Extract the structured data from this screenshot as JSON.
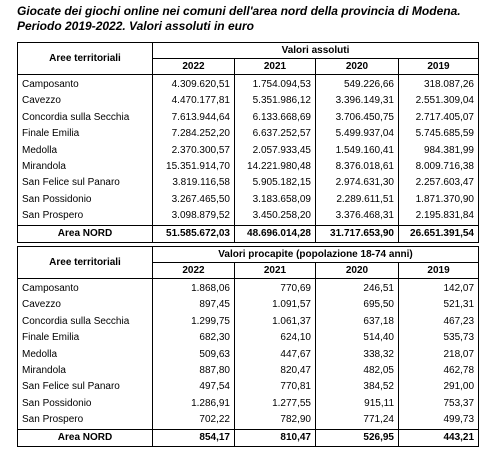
{
  "title": [
    "Giocate dei giochi online nei comuni dell'area nord della provincia di Modena.",
    "Periodo 2019-2022. Valori assoluti in euro"
  ],
  "tables": [
    {
      "header_label": "Aree territoriali",
      "group_label": "Valori assoluti",
      "years": [
        "2022",
        "2021",
        "2020",
        "2019"
      ],
      "rows": [
        [
          "Camposanto",
          "4.309.620,51",
          "1.754.094,53",
          "549.226,66",
          "318.087,26"
        ],
        [
          "Cavezzo",
          "4.470.177,81",
          "5.351.986,12",
          "3.396.149,31",
          "2.551.309,04"
        ],
        [
          "Concordia sulla Secchia",
          "7.613.944,64",
          "6.133.668,69",
          "3.706.450,75",
          "2.717.405,07"
        ],
        [
          "Finale Emilia",
          "7.284.252,20",
          "6.637.252,57",
          "5.499.937,04",
          "5.745.685,59"
        ],
        [
          "Medolla",
          "2.370.300,57",
          "2.057.933,45",
          "1.549.160,41",
          "984.381,99"
        ],
        [
          "Mirandola",
          "15.351.914,70",
          "14.221.980,48",
          "8.376.018,61",
          "8.009.716,38"
        ],
        [
          "San Felice sul Panaro",
          "3.819.116,58",
          "5.905.182,15",
          "2.974.631,30",
          "2.257.603,47"
        ],
        [
          "San Possidonio",
          "3.267.465,50",
          "3.183.658,09",
          "2.289.611,51",
          "1.871.370,90"
        ],
        [
          "San Prospero",
          "3.098.879,52",
          "3.450.258,20",
          "3.376.468,31",
          "2.195.831,84"
        ]
      ],
      "total": [
        "Area NORD",
        "51.585.672,03",
        "48.696.014,28",
        "31.717.653,90",
        "26.651.391,54"
      ]
    },
    {
      "header_label": "Aree territoriali",
      "group_label": "Valori procapite (popolazione 18-74 anni)",
      "years": [
        "2022",
        "2021",
        "2020",
        "2019"
      ],
      "rows": [
        [
          "Camposanto",
          "1.868,06",
          "770,69",
          "246,51",
          "142,07"
        ],
        [
          "Cavezzo",
          "897,45",
          "1.091,57",
          "695,50",
          "521,31"
        ],
        [
          "Concordia sulla Secchia",
          "1.299,75",
          "1.061,37",
          "637,18",
          "467,23"
        ],
        [
          "Finale Emilia",
          "682,30",
          "624,10",
          "514,40",
          "535,73"
        ],
        [
          "Medolla",
          "509,63",
          "447,67",
          "338,32",
          "218,07"
        ],
        [
          "Mirandola",
          "887,80",
          "820,47",
          "482,05",
          "462,78"
        ],
        [
          "San Felice sul Panaro",
          "497,54",
          "770,81",
          "384,52",
          "291,00"
        ],
        [
          "San Possidonio",
          "1.286,91",
          "1.277,55",
          "915,11",
          "753,37"
        ],
        [
          "San Prospero",
          "702,22",
          "782,90",
          "771,24",
          "499,73"
        ]
      ],
      "total": [
        "Area NORD",
        "854,17",
        "810,47",
        "526,95",
        "443,21"
      ]
    }
  ]
}
